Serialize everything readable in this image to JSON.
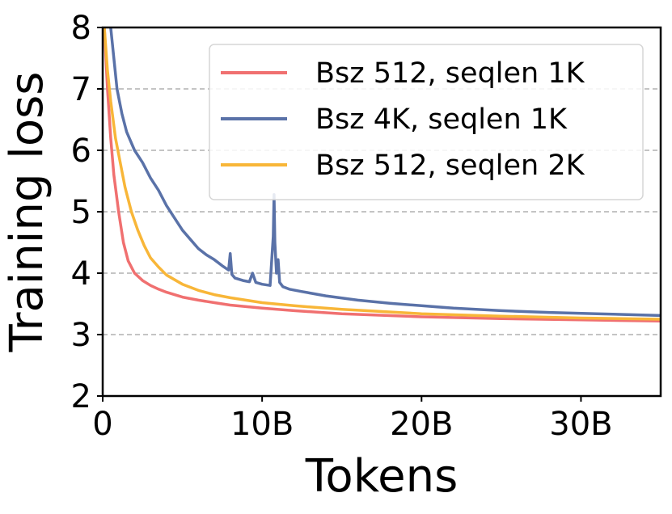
{
  "chart_data": {
    "type": "line",
    "xlabel": "Tokens",
    "ylabel": "Training loss",
    "xlim": [
      0,
      35
    ],
    "ylim": [
      2,
      8
    ],
    "x_ticks": [
      {
        "value": 0,
        "label": "0"
      },
      {
        "value": 10,
        "label": "10B"
      },
      {
        "value": 20,
        "label": "20B"
      },
      {
        "value": 30,
        "label": "30B"
      }
    ],
    "y_ticks": [
      {
        "value": 2,
        "label": "2"
      },
      {
        "value": 3,
        "label": "3"
      },
      {
        "value": 4,
        "label": "4"
      },
      {
        "value": 5,
        "label": "5"
      },
      {
        "value": 6,
        "label": "6"
      },
      {
        "value": 7,
        "label": "7"
      },
      {
        "value": 8,
        "label": "8"
      }
    ],
    "grid": {
      "y": true,
      "x": false,
      "style": "dashed"
    },
    "legend_position": "top-right",
    "series": [
      {
        "name": "Bsz 512, seqlen 1K",
        "color": "#f07070",
        "x": [
          0.1,
          0.3,
          0.5,
          0.7,
          1.0,
          1.3,
          1.6,
          2.0,
          2.5,
          3.0,
          3.5,
          4.0,
          5.0,
          6.0,
          7.0,
          8.0,
          10.0,
          12.0,
          15.0,
          20.0,
          25.0,
          30.0,
          35.0
        ],
        "y": [
          8.0,
          7.0,
          6.2,
          5.6,
          5.0,
          4.5,
          4.2,
          4.0,
          3.88,
          3.8,
          3.74,
          3.69,
          3.61,
          3.56,
          3.52,
          3.48,
          3.43,
          3.39,
          3.34,
          3.29,
          3.26,
          3.24,
          3.22
        ]
      },
      {
        "name": "Bsz 4K, seqlen 1K",
        "color": "#5a72a8",
        "x": [
          0.5,
          0.7,
          0.9,
          1.2,
          1.5,
          2.0,
          2.5,
          3.0,
          3.5,
          4.0,
          4.5,
          5.0,
          5.5,
          6.0,
          6.5,
          7.0,
          7.5,
          7.9,
          8.0,
          8.1,
          8.3,
          8.8,
          9.2,
          9.4,
          9.6,
          10.0,
          10.5,
          10.7,
          10.75,
          10.8,
          10.9,
          11.0,
          11.1,
          11.3,
          11.7,
          12.5,
          14.0,
          16.0,
          18.0,
          20.0,
          22.0,
          25.0,
          28.0,
          31.0,
          35.0
        ],
        "y": [
          8.0,
          7.5,
          7.0,
          6.6,
          6.3,
          6.0,
          5.8,
          5.55,
          5.35,
          5.1,
          4.9,
          4.7,
          4.55,
          4.4,
          4.3,
          4.22,
          4.12,
          4.05,
          4.32,
          3.98,
          3.92,
          3.88,
          3.86,
          4.0,
          3.85,
          3.82,
          3.8,
          4.6,
          5.28,
          4.5,
          4.0,
          4.22,
          3.85,
          3.78,
          3.74,
          3.7,
          3.63,
          3.56,
          3.51,
          3.47,
          3.43,
          3.39,
          3.36,
          3.34,
          3.31
        ]
      },
      {
        "name": "Bsz 512, seqlen 2K",
        "color": "#f8b638",
        "x": [
          0.1,
          0.3,
          0.5,
          0.8,
          1.1,
          1.4,
          1.8,
          2.2,
          2.6,
          3.0,
          3.5,
          4.0,
          5.0,
          6.0,
          7.0,
          8.0,
          10.0,
          12.0,
          15.0,
          20.0,
          25.0,
          30.0,
          35.0
        ],
        "y": [
          8.0,
          7.3,
          6.8,
          6.2,
          5.8,
          5.4,
          5.0,
          4.7,
          4.45,
          4.25,
          4.1,
          3.97,
          3.82,
          3.72,
          3.65,
          3.6,
          3.52,
          3.47,
          3.41,
          3.34,
          3.3,
          3.27,
          3.25
        ]
      }
    ]
  }
}
